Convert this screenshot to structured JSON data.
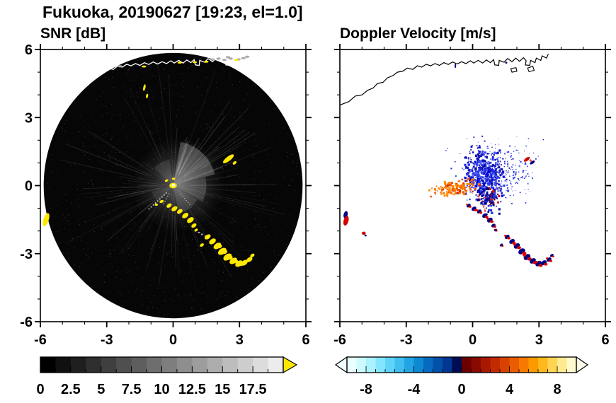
{
  "header": {
    "title": "Fukuoka, 20190627 [19:23, el=1.0]"
  },
  "panels": {
    "snr": {
      "title": "SNR [dB]"
    },
    "doppler": {
      "title": "Doppler Velocity [m/s]"
    }
  },
  "chart_data": {
    "site": "Fukuoka",
    "date": "20190627",
    "time": "19:23",
    "elevation_deg": 1.0,
    "coastline": [
      [
        -6.0,
        3.55
      ],
      [
        -5.6,
        3.7
      ],
      [
        -5.3,
        3.95
      ],
      [
        -5.0,
        4.0
      ],
      [
        -4.75,
        4.2
      ],
      [
        -4.5,
        4.3
      ],
      [
        -4.3,
        4.5
      ],
      [
        -4.05,
        4.55
      ],
      [
        -3.85,
        4.75
      ],
      [
        -3.6,
        4.85
      ],
      [
        -3.4,
        5.0
      ],
      [
        -3.15,
        5.05
      ],
      [
        -2.95,
        5.18
      ],
      [
        -2.7,
        5.12
      ],
      [
        -2.5,
        5.28
      ],
      [
        -2.3,
        5.22
      ],
      [
        -2.1,
        5.35
      ],
      [
        -1.9,
        5.28
      ],
      [
        -1.7,
        5.38
      ],
      [
        -1.5,
        5.3
      ],
      [
        -1.3,
        5.42
      ],
      [
        -1.1,
        5.34
      ],
      [
        -0.9,
        5.45
      ],
      [
        -0.7,
        5.36
      ],
      [
        -0.5,
        5.46
      ],
      [
        -0.3,
        5.38
      ],
      [
        -0.1,
        5.5
      ],
      [
        0.05,
        5.4
      ],
      [
        0.25,
        5.52
      ],
      [
        0.45,
        5.4
      ],
      [
        0.62,
        5.54
      ],
      [
        0.8,
        5.42
      ],
      [
        0.95,
        5.55
      ],
      [
        1.0,
        5.32
      ],
      [
        1.18,
        5.3
      ],
      [
        1.2,
        5.52
      ],
      [
        1.42,
        5.44
      ],
      [
        1.58,
        5.6
      ],
      [
        1.78,
        5.46
      ],
      [
        1.95,
        5.62
      ],
      [
        2.12,
        5.48
      ],
      [
        2.3,
        5.64
      ],
      [
        2.42,
        5.5
      ],
      [
        2.38,
        5.32
      ],
      [
        2.58,
        5.3
      ],
      [
        2.62,
        5.52
      ],
      [
        2.82,
        5.42
      ],
      [
        2.88,
        5.62
      ],
      [
        3.08,
        5.52
      ],
      [
        3.14,
        5.72
      ],
      [
        3.34,
        5.62
      ],
      [
        3.42,
        5.8
      ]
    ],
    "harbors": [
      [
        [
          1.72,
          5.16
        ],
        [
          1.78,
          5.0
        ],
        [
          2.0,
          5.04
        ],
        [
          1.96,
          5.2
        ],
        [
          1.72,
          5.16
        ]
      ],
      [
        [
          2.48,
          5.18
        ],
        [
          2.55,
          5.02
        ],
        [
          2.78,
          5.08
        ],
        [
          2.72,
          5.26
        ],
        [
          2.48,
          5.18
        ]
      ]
    ],
    "echo_arc": [
      [
        -0.18,
        -0.88,
        0.13
      ],
      [
        0.06,
        -1.02,
        0.15
      ],
      [
        0.3,
        -1.14,
        0.14
      ],
      [
        0.55,
        -1.32,
        0.16
      ],
      [
        0.78,
        -1.52,
        0.17
      ],
      [
        0.94,
        -1.76,
        0.13
      ],
      [
        1.04,
        -1.96,
        0.09
      ],
      [
        1.3,
        -2.62,
        0.1
      ],
      [
        1.56,
        -2.26,
        0.15
      ],
      [
        1.78,
        -2.46,
        0.17
      ],
      [
        2.0,
        -2.66,
        0.19
      ],
      [
        2.22,
        -2.9,
        0.21
      ],
      [
        2.46,
        -3.15,
        0.21
      ],
      [
        2.72,
        -3.32,
        0.19
      ],
      [
        2.98,
        -3.44,
        0.19
      ],
      [
        3.22,
        -3.4,
        0.17
      ],
      [
        3.45,
        -3.26,
        0.15
      ],
      [
        3.58,
        -3.08,
        0.11
      ]
    ],
    "panels": [
      {
        "id": "snr",
        "type": "heatmap",
        "title": "SNR [dB]",
        "xlim": [
          -6,
          6
        ],
        "ylim": [
          -6,
          6
        ],
        "major_ticks": [
          -6,
          -3,
          0,
          3,
          6
        ],
        "minor_tick_step": 1,
        "grid": false,
        "radar_disk": {
          "center": [
            0,
            0
          ],
          "radius": 5.85,
          "base_color": "#060606"
        },
        "center_glow": {
          "x": 0.25,
          "y": 0.05,
          "r": 2.1
        },
        "beam_wedges": [
          {
            "a0": 15,
            "a1": 80,
            "r": 1.95,
            "o": 0.3
          },
          {
            "a0": -28,
            "a1": 14,
            "r": 1.5,
            "o": 0.2
          },
          {
            "a0": -78,
            "a1": -30,
            "r": 1.25,
            "o": 0.16
          },
          {
            "a0": 98,
            "a1": 138,
            "r": 1.15,
            "o": 0.13
          },
          {
            "a0": 195,
            "a1": 228,
            "r": 1.0,
            "o": 0.1
          }
        ],
        "noise_speckle": {
          "n": 1100,
          "seed": 7,
          "color": "#b0b0b0"
        },
        "radial_streaks": {
          "n": 90,
          "bright_n": 14,
          "seed": 19
        },
        "dash_trails": [
          {
            "angle": 222,
            "r0": 0.45,
            "r1": 1.5,
            "n": 9,
            "color": "#dddddd",
            "s": 1.6
          },
          {
            "angle": 240,
            "r0": 0.4,
            "r1": 0.9,
            "n": 5,
            "color": "#cccccc",
            "s": 1.3
          },
          {
            "angle": -48,
            "r0": 0.5,
            "r1": 1.1,
            "n": 6,
            "color": "#bbbbbb",
            "s": 1.3
          }
        ],
        "gray_dashes": [
          [
            1.12,
            -2.04
          ],
          [
            1.26,
            -2.12
          ],
          [
            1.42,
            -2.2
          ]
        ],
        "clutter_blobs": [
          [
            -5.74,
            -1.5,
            0.12,
            0.3,
            18
          ],
          [
            -0.52,
            -0.7,
            0.1,
            0.06,
            -20
          ],
          [
            -0.76,
            -0.84,
            0.07,
            0.05,
            0
          ],
          [
            2.5,
            1.18,
            0.3,
            0.1,
            -38
          ],
          [
            2.78,
            1.0,
            0.1,
            0.06,
            -38
          ],
          [
            -1.3,
            4.32,
            0.05,
            0.15,
            12
          ],
          [
            -1.18,
            3.95,
            0.05,
            0.1,
            12
          ],
          [
            0.02,
            0.3,
            0.07,
            0.05,
            0
          ],
          [
            -0.3,
            0.22,
            0.08,
            0.05,
            -25
          ]
        ],
        "coast_echoes_yellow": [
          [
            -1.32,
            5.25
          ],
          [
            0.3,
            5.42
          ],
          [
            0.98,
            5.44
          ],
          [
            1.5,
            5.46
          ],
          [
            2.86,
            5.54
          ]
        ],
        "coast_echoes_gray": [
          [
            1.78,
            5.56
          ],
          [
            2.05,
            5.6
          ],
          [
            2.32,
            5.54
          ],
          [
            2.6,
            5.6
          ],
          [
            2.95,
            5.56
          ],
          [
            3.18,
            5.62
          ],
          [
            -2.4,
            5.26
          ],
          [
            3.35,
            5.68
          ],
          [
            2.48,
            5.66
          ]
        ],
        "colorbar": {
          "range": [
            0,
            20
          ],
          "tick_values": [
            0,
            2.5,
            5,
            7.5,
            10,
            12.5,
            15,
            17.5
          ],
          "tick_labels": [
            "0",
            "2.5",
            "5",
            "7.5",
            "10",
            "12.5",
            "15",
            "17.5"
          ],
          "minor_step": 1.25,
          "colormap": "grayscale",
          "over_arrow_color": "#ffe800"
        }
      },
      {
        "id": "doppler",
        "type": "scatter",
        "title": "Doppler Velocity [m/s]",
        "xlim": [
          -6,
          6
        ],
        "ylim": [
          -6,
          6
        ],
        "major_ticks": [
          -6,
          -3,
          0,
          3,
          6
        ],
        "minor_tick_step": 1,
        "clusters": [
          {
            "name": "receding-core",
            "cx": 0.55,
            "cy": 0.5,
            "sx": 0.42,
            "sy": 0.48,
            "n": 420,
            "size": 2.4,
            "seed": 11,
            "colors": [
              "#1414c8",
              "#2a3cee",
              "#0a0aaa",
              "#4258f2",
              "#0000d8"
            ]
          },
          {
            "name": "receding-halo",
            "cx": 1.0,
            "cy": 0.85,
            "sx": 0.85,
            "sy": 0.6,
            "n": 240,
            "size": 1.5,
            "seed": 23,
            "colors": [
              "#2233dd",
              "#1b1bbb",
              "#4455ee"
            ]
          },
          {
            "name": "receding-halo-right",
            "cx": 1.5,
            "cy": 0.35,
            "sx": 0.6,
            "sy": 0.5,
            "n": 80,
            "size": 1.4,
            "seed": 31,
            "colors": [
              "#2233dd",
              "#3344ee"
            ]
          },
          {
            "name": "receding-south",
            "cx": 0.72,
            "cy": -0.55,
            "sx": 0.26,
            "sy": 0.3,
            "n": 140,
            "size": 2.4,
            "seed": 37,
            "colors": [
              "#0d0d9c",
              "#2233dd",
              "#cc1111",
              "#000080"
            ]
          },
          {
            "name": "approaching-jet",
            "cx": -0.8,
            "cy": -0.12,
            "sx": 0.48,
            "sy": 0.15,
            "n": 160,
            "size": 2.4,
            "seed": 53,
            "slope": 0.18,
            "colors": [
              "#ff7700",
              "#ff9200",
              "#ee5500",
              "#d42200",
              "#ff8800"
            ]
          }
        ],
        "singles": [
          {
            "x": -5.74,
            "y": -1.28,
            "rx": 0.09,
            "ry": 0.16,
            "rot": 15,
            "fill": "#000080"
          },
          {
            "x": -5.72,
            "y": -1.55,
            "rx": 0.11,
            "ry": 0.22,
            "rot": 15,
            "fill": "#d40000"
          },
          {
            "x": -4.92,
            "y": -2.1,
            "rx": 0.09,
            "ry": 0.07,
            "rot": 0,
            "fill": "#d40000"
          },
          {
            "x": -4.84,
            "y": -2.2,
            "rx": 0.05,
            "ry": 0.04,
            "rot": 0,
            "fill": "#000080"
          },
          {
            "x": 2.45,
            "y": 1.16,
            "rx": 0.16,
            "ry": 0.07,
            "rot": -35,
            "fill": "#d40000"
          },
          {
            "x": 2.7,
            "y": 1.02,
            "rx": 0.13,
            "ry": 0.06,
            "rot": -35,
            "fill": "#000080"
          },
          {
            "x": 2.62,
            "y": 1.1,
            "rx": 0.05,
            "ry": 0.04,
            "rot": 0,
            "fill": "#ff3300"
          },
          {
            "x": -0.78,
            "y": 5.28,
            "rx": 0.035,
            "ry": 0.1,
            "rot": 0,
            "fill": "#000080"
          },
          {
            "x": 1.52,
            "y": 5.42,
            "rx": 0.05,
            "ry": 0.04,
            "rot": 0,
            "fill": "#000066"
          }
        ],
        "colorbar": {
          "range": [
            -9.6,
            9.6
          ],
          "tick_values": [
            -8,
            -4,
            0,
            4,
            8
          ],
          "tick_labels": [
            "-8",
            "-4",
            "0",
            "4",
            "8"
          ],
          "minor_step": 0.8,
          "colors": [
            "#eaffff",
            "#ccfaff",
            "#aaf2ff",
            "#84e6fe",
            "#60d4f8",
            "#3ebfef",
            "#22a5e2",
            "#0f88d2",
            "#066bc0",
            "#0250aa",
            "#013691",
            "#000d54",
            "#6b0000",
            "#8b0a00",
            "#a81800",
            "#c22a00",
            "#d84200",
            "#ea5c00",
            "#f77a00",
            "#ff9900",
            "#ffb81e",
            "#ffd452",
            "#ffea90",
            "#fff9cc"
          ],
          "under_arrow_color": "#f2ffff",
          "over_arrow_color": "#fffce8"
        }
      }
    ]
  }
}
